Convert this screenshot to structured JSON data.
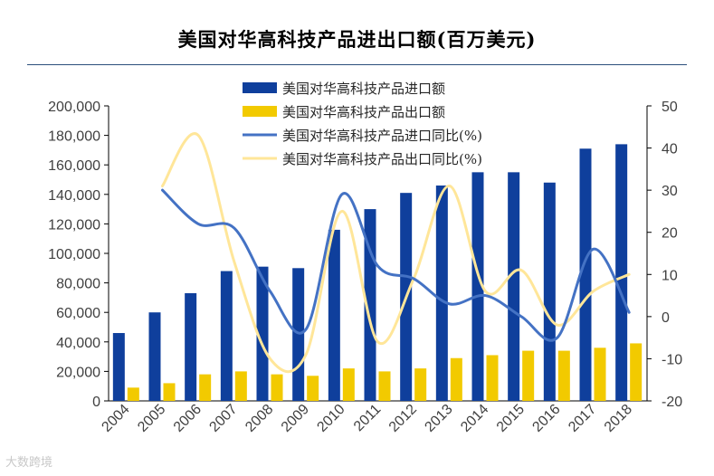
{
  "title": "美国对华高科技产品进出口额(百万美元)",
  "watermark": "大数跨境",
  "colors": {
    "import_bar": "#0f3f9c",
    "export_bar": "#f2ca00",
    "import_line": "#4472c4",
    "export_line": "#ffe699",
    "axis": "#000000",
    "text": "#404040"
  },
  "chart_data": {
    "type": "bar",
    "categories": [
      "2004",
      "2005",
      "2006",
      "2007",
      "2008",
      "2009",
      "2010",
      "2011",
      "2012",
      "2013",
      "2014",
      "2015",
      "2016",
      "2017",
      "2018"
    ],
    "series": [
      {
        "name": "美国对华高科技产品进口额",
        "type": "bar",
        "axis": "left",
        "values": [
          46000,
          60000,
          73000,
          88000,
          91000,
          90000,
          116000,
          130000,
          141000,
          146000,
          155000,
          155000,
          148000,
          171000,
          174000
        ]
      },
      {
        "name": "美国对华高科技产品出口额",
        "type": "bar",
        "axis": "left",
        "values": [
          9000,
          12000,
          18000,
          20000,
          18000,
          17000,
          22000,
          20000,
          22000,
          29000,
          31000,
          34000,
          34000,
          36000,
          39000
        ]
      },
      {
        "name": "美国对华高科技产品进口同比(%)",
        "type": "line",
        "axis": "right",
        "values": [
          null,
          30,
          22,
          21,
          6,
          -3,
          29,
          12,
          9,
          3,
          5,
          0,
          -5,
          16,
          1
        ]
      },
      {
        "name": "美国对华高科技产品出口同比(%)",
        "type": "line",
        "axis": "right",
        "values": [
          null,
          31,
          43,
          13,
          -10,
          -9,
          25,
          -6,
          9,
          31,
          6,
          11,
          -2,
          6,
          10
        ]
      }
    ],
    "y_left": {
      "min": 0,
      "max": 200000,
      "step": 20000,
      "ticks": [
        "0",
        "20,000",
        "40,000",
        "60,000",
        "80,000",
        "100,000",
        "120,000",
        "140,000",
        "160,000",
        "180,000",
        "200,000"
      ]
    },
    "y_right": {
      "min": -20,
      "max": 50,
      "step": 10,
      "ticks": [
        "-20",
        "-10",
        "0",
        "10",
        "20",
        "30",
        "40",
        "50"
      ]
    },
    "legend_position": "top-center",
    "grid": false
  }
}
